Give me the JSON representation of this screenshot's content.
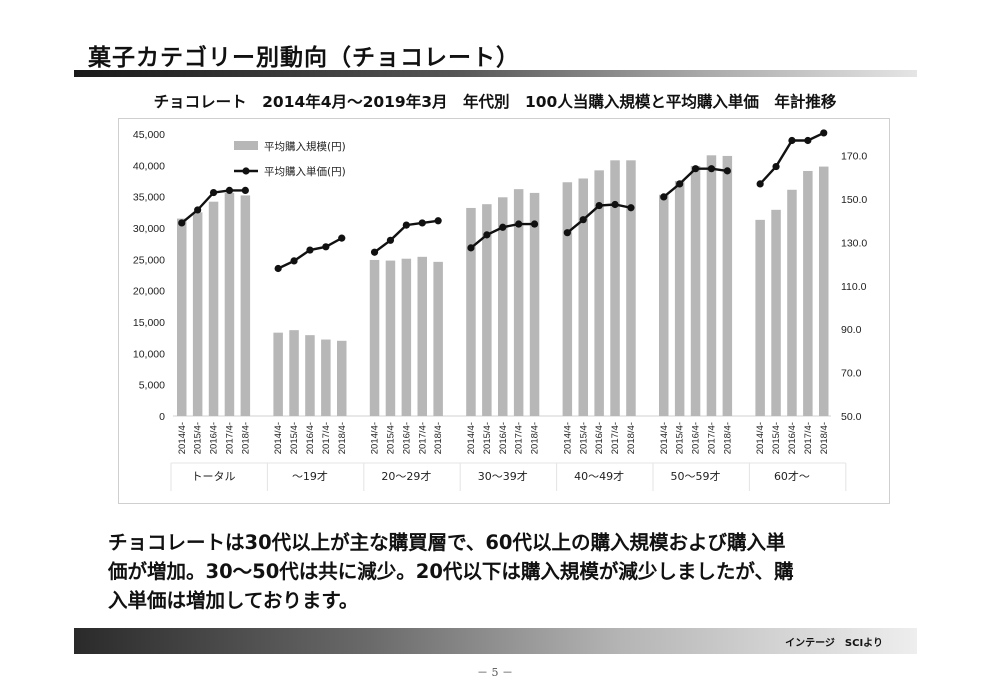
{
  "page": {
    "title": "菓子カテゴリー別動向（チョコレート）",
    "summary_line1": "チョコレートは30代以上が主な購買層で、60代以上の購入規模および購入単",
    "summary_line2": "価が増加。30～50代は共に減少。20代以下は購入規模が減少しましたが、購",
    "summary_line3": "入単価は増加しております。",
    "source": "インテージ　SCIより",
    "page_number": "－ 5 －"
  },
  "chart_data": {
    "type": "bar",
    "title": "チョコレート　2014年4月～2019年3月　年代別　100人当購入規模と平均購入単価　年計推移",
    "legend": {
      "position": "top-left"
    },
    "grid": false,
    "years": [
      "2014/4-",
      "2015/4-",
      "2016/4-",
      "2017/4-",
      "2018/4-"
    ],
    "groups": [
      "トータル",
      "～19才",
      "20～29才",
      "30～39才",
      "40～49才",
      "50～59才",
      "60才～"
    ],
    "y_left": {
      "min": 0,
      "max": 45000,
      "ticks": [
        "0",
        "5,000",
        "10,000",
        "15,000",
        "20,000",
        "25,000",
        "30,000",
        "35,000",
        "40,000",
        "45,000"
      ]
    },
    "y_right": {
      "min": 50,
      "max": 180,
      "ticks": [
        "50.0",
        "70.0",
        "90.0",
        "110.0",
        "130.0",
        "150.0",
        "170.0"
      ]
    },
    "series": [
      {
        "name": "平均購入規模(円)",
        "type": "bar",
        "axis": "left",
        "color": "#b7b7b7",
        "values": [
          [
            31500,
            32500,
            34200,
            35600,
            35200
          ],
          [
            13300,
            13700,
            12900,
            12200,
            12000
          ],
          [
            24900,
            24800,
            25100,
            25400,
            24600
          ],
          [
            33200,
            33800,
            34900,
            36200,
            35600
          ],
          [
            37300,
            37900,
            39200,
            40800,
            40800
          ],
          [
            35300,
            37500,
            39900,
            41600,
            41500
          ],
          [
            31300,
            32900,
            36100,
            39100,
            39800
          ]
        ]
      },
      {
        "name": "平均購入単価(円)",
        "type": "line",
        "axis": "right",
        "color": "#111111",
        "values": [
          [
            139.0,
            145.0,
            153.0,
            154.0,
            154.0
          ],
          [
            118.0,
            121.5,
            126.5,
            128.0,
            132.0
          ],
          [
            125.5,
            131.0,
            138.0,
            139.0,
            140.0
          ],
          [
            127.5,
            133.5,
            137.0,
            138.5,
            138.5
          ],
          [
            134.5,
            140.5,
            147.0,
            147.5,
            146.0
          ],
          [
            151.0,
            157.0,
            164.0,
            164.0,
            163.0
          ],
          [
            157.0,
            165.0,
            177.0,
            177.0,
            180.5
          ]
        ]
      }
    ]
  }
}
